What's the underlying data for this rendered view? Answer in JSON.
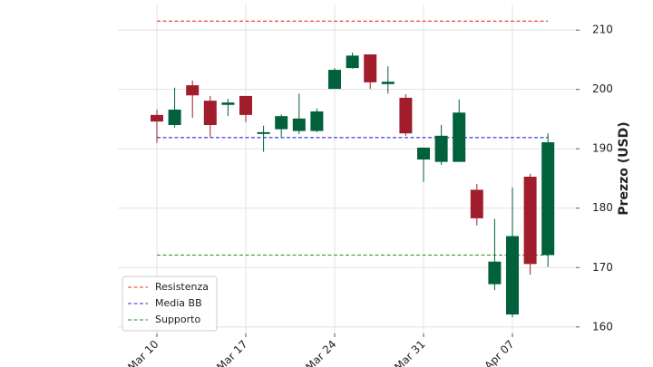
{
  "chart_data": {
    "type": "candlestick",
    "ylabel": "Prezzo (USD)",
    "categories": [
      "Mar 10",
      null,
      null,
      null,
      null,
      "Mar 17",
      null,
      null,
      null,
      null,
      "Mar 24",
      null,
      null,
      null,
      null,
      "Mar 31",
      null,
      null,
      null,
      null,
      "Apr 07",
      null,
      null
    ],
    "open": [
      195.7,
      194.0,
      200.7,
      198.1,
      197.4,
      198.9,
      192.5,
      193.3,
      193.0,
      193.0,
      200.1,
      203.6,
      205.9,
      200.9,
      198.6,
      188.2,
      187.8,
      187.8,
      183.1,
      167.2,
      162.1,
      185.3,
      172.1
    ],
    "high": [
      196.6,
      200.3,
      201.5,
      198.9,
      198.4,
      198.9,
      193.9,
      195.8,
      199.3,
      196.8,
      203.6,
      206.2,
      205.9,
      203.9,
      199.2,
      190.2,
      194.0,
      198.3,
      184.1,
      178.2,
      183.5,
      185.8,
      192.6
    ],
    "low": [
      191.0,
      193.6,
      195.2,
      192.0,
      195.5,
      194.5,
      189.5,
      192.0,
      192.5,
      192.8,
      200.1,
      203.5,
      200.1,
      199.3,
      192.2,
      184.4,
      187.3,
      187.8,
      177.1,
      166.2,
      161.6,
      168.8,
      170.1
    ],
    "close": [
      194.6,
      196.6,
      199.0,
      194.0,
      197.8,
      195.7,
      192.8,
      195.5,
      195.1,
      196.3,
      203.3,
      205.7,
      201.2,
      201.3,
      192.6,
      190.2,
      192.2,
      196.1,
      178.3,
      171.0,
      175.3,
      170.6,
      191.1
    ],
    "up_color": "#00613b",
    "down_color": "#a11d2b",
    "hlines": [
      {
        "name": "Resistenza",
        "color": "#e8322f",
        "value": 211.5
      },
      {
        "name": "Media BB",
        "color": "#2b2bd6",
        "value": 191.9
      },
      {
        "name": "Supporto",
        "color": "#2e8b2e",
        "value": 172.1
      }
    ],
    "ylim": [
      158.9,
      214.3
    ],
    "yticks": [
      160,
      170,
      180,
      190,
      200,
      210
    ],
    "grid": true,
    "legend": "lower left"
  }
}
